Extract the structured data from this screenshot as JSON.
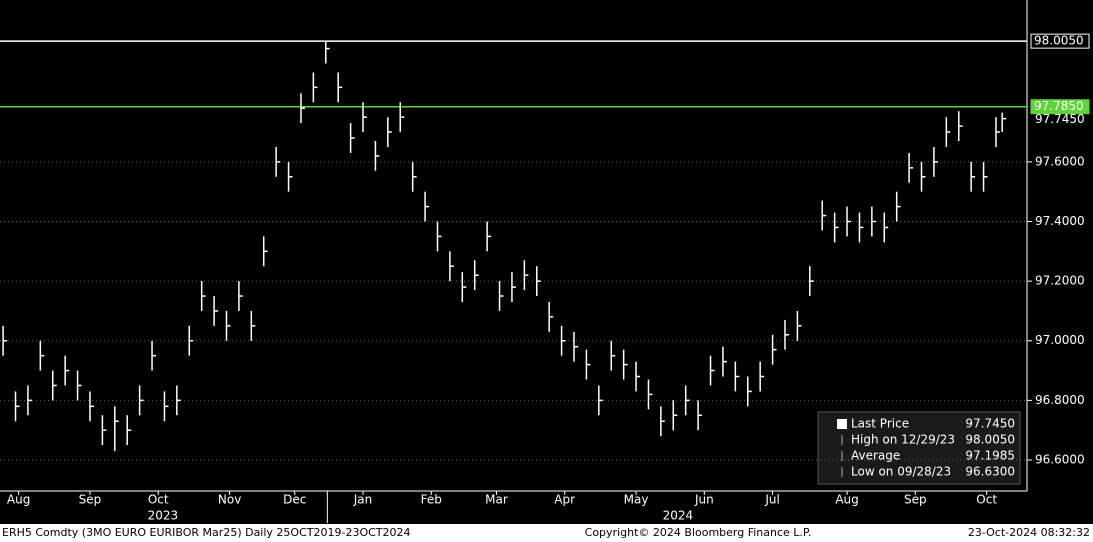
{
  "chart_data": {
    "type": "ohlc",
    "color": "#ffffff",
    "x": [
      0,
      4,
      8,
      12,
      16,
      20,
      24,
      28,
      32,
      36,
      40,
      44,
      48,
      52,
      56,
      60,
      64,
      68,
      72,
      76,
      80,
      84,
      88,
      92,
      96,
      100,
      104,
      108,
      112,
      116,
      120,
      124,
      128,
      132,
      136,
      140,
      144,
      148,
      152,
      156,
      160,
      164,
      168,
      172,
      176,
      180,
      184,
      188,
      192,
      196,
      200,
      204,
      208,
      212,
      216,
      220,
      224,
      228,
      232,
      236,
      240,
      244,
      248,
      252,
      256,
      260,
      264,
      268,
      272,
      276,
      280,
      284,
      288,
      292,
      296,
      300,
      304,
      308,
      312,
      316,
      320,
      322
    ],
    "high": [
      97.05,
      96.83,
      96.85,
      97.0,
      96.9,
      96.95,
      96.9,
      96.83,
      96.75,
      96.78,
      96.75,
      96.85,
      97.0,
      96.83,
      96.85,
      97.05,
      97.2,
      97.15,
      97.1,
      97.2,
      97.1,
      97.35,
      97.65,
      97.6,
      97.83,
      97.9,
      98.005,
      97.9,
      97.73,
      97.8,
      97.67,
      97.75,
      97.8,
      97.6,
      97.5,
      97.4,
      97.3,
      97.23,
      97.27,
      97.4,
      97.2,
      97.23,
      97.27,
      97.25,
      97.13,
      97.05,
      97.03,
      96.97,
      96.85,
      97.0,
      96.97,
      96.93,
      96.87,
      96.78,
      96.8,
      96.85,
      96.8,
      96.95,
      96.98,
      96.93,
      96.88,
      96.93,
      97.02,
      97.07,
      97.1,
      97.25,
      97.47,
      97.43,
      97.45,
      97.43,
      97.45,
      97.43,
      97.5,
      97.63,
      97.6,
      97.65,
      97.75,
      97.77,
      97.6,
      97.6,
      97.75,
      97.765
    ],
    "low": [
      96.95,
      96.73,
      96.75,
      96.9,
      96.8,
      96.85,
      96.8,
      96.73,
      96.65,
      96.63,
      96.65,
      96.75,
      96.9,
      96.73,
      96.75,
      96.95,
      97.1,
      97.05,
      97.0,
      97.1,
      97.0,
      97.25,
      97.55,
      97.5,
      97.73,
      97.8,
      97.93,
      97.8,
      97.63,
      97.7,
      97.57,
      97.65,
      97.7,
      97.5,
      97.4,
      97.3,
      97.2,
      97.13,
      97.17,
      97.3,
      97.1,
      97.13,
      97.17,
      97.15,
      97.03,
      96.95,
      96.93,
      96.87,
      96.75,
      96.9,
      96.87,
      96.83,
      96.77,
      96.68,
      96.7,
      96.75,
      96.7,
      96.85,
      96.88,
      96.83,
      96.78,
      96.83,
      96.92,
      96.97,
      97.0,
      97.15,
      97.37,
      97.33,
      97.35,
      97.33,
      97.35,
      97.33,
      97.4,
      97.53,
      97.5,
      97.55,
      97.65,
      97.67,
      97.5,
      97.5,
      97.65,
      97.7
    ],
    "close": [
      97.0,
      96.78,
      96.8,
      96.95,
      96.85,
      96.9,
      96.85,
      96.78,
      96.7,
      96.73,
      96.7,
      96.8,
      96.95,
      96.78,
      96.8,
      97.0,
      97.15,
      97.1,
      97.05,
      97.15,
      97.05,
      97.3,
      97.6,
      97.55,
      97.78,
      97.85,
      97.98,
      97.85,
      97.68,
      97.75,
      97.62,
      97.7,
      97.75,
      97.55,
      97.45,
      97.35,
      97.25,
      97.18,
      97.22,
      97.35,
      97.15,
      97.18,
      97.22,
      97.2,
      97.08,
      97.0,
      96.98,
      96.92,
      96.8,
      96.95,
      96.92,
      96.88,
      96.82,
      96.73,
      96.75,
      96.8,
      96.75,
      96.9,
      96.93,
      96.88,
      96.83,
      96.88,
      96.97,
      97.02,
      97.05,
      97.2,
      97.42,
      97.38,
      97.4,
      97.38,
      97.4,
      97.38,
      97.45,
      97.58,
      97.55,
      97.6,
      97.7,
      97.72,
      97.55,
      97.55,
      97.7,
      97.745
    ],
    "xlim": [
      -1,
      330
    ],
    "xticks": [
      {
        "value": 5,
        "label": "Aug"
      },
      {
        "value": 28,
        "label": "Sep"
      },
      {
        "value": 50,
        "label": "Oct"
      },
      {
        "value": 73,
        "label": "Nov"
      },
      {
        "value": 94,
        "label": "Dec"
      },
      {
        "value": 116,
        "label": "Jan"
      },
      {
        "value": 138,
        "label": "Feb"
      },
      {
        "value": 159,
        "label": "Mar"
      },
      {
        "value": 181,
        "label": "Apr"
      },
      {
        "value": 204,
        "label": "May"
      },
      {
        "value": 226,
        "label": "Jun"
      },
      {
        "value": 248,
        "label": "Jul"
      },
      {
        "value": 272,
        "label": "Aug"
      },
      {
        "value": 294,
        "label": "Sep"
      },
      {
        "value": 317,
        "label": "Oct"
      }
    ],
    "years": [
      {
        "value": 51.5,
        "label": "2023"
      },
      {
        "value": 217.5,
        "label": "2024"
      }
    ],
    "year_divider": 104.5,
    "ylim": [
      96.496,
      98.143
    ],
    "yticks": [
      {
        "value": 96.6,
        "label": "96.6000"
      },
      {
        "value": 96.8,
        "label": "96.8000"
      },
      {
        "value": 97.0,
        "label": "97.0000"
      },
      {
        "value": 97.2,
        "label": "97.2000"
      },
      {
        "value": 97.4,
        "label": "97.4000"
      },
      {
        "value": 97.6,
        "label": "97.6000"
      }
    ],
    "grid": true,
    "reference_lines": [
      {
        "value": 98.005,
        "label": "98.0050",
        "color": "#ffffff"
      },
      {
        "value": 97.785,
        "label": "97.7850",
        "color": "#5fd33a"
      }
    ],
    "last_price": {
      "value": 97.745,
      "label": "97.7450"
    },
    "legend": [
      {
        "name": "Last Price",
        "value": 97.745,
        "label": "97.7450"
      },
      {
        "name": "High on 12/29/23",
        "value": 98.005,
        "label": "98.0050"
      },
      {
        "name": "Average",
        "value": 97.1985,
        "label": "97.1985"
      },
      {
        "name": "Low on 09/28/23",
        "value": 96.63,
        "label": "96.6300"
      }
    ],
    "footer": {
      "left": "ERH5 Comdty (3MO EURO EURIBOR  Mar25)  Daily 25OCT2019-23OCT2024",
      "center": "Copyright© 2024 Bloomberg Finance L.P.",
      "right": "23-Oct-2024 08:32:32"
    }
  }
}
